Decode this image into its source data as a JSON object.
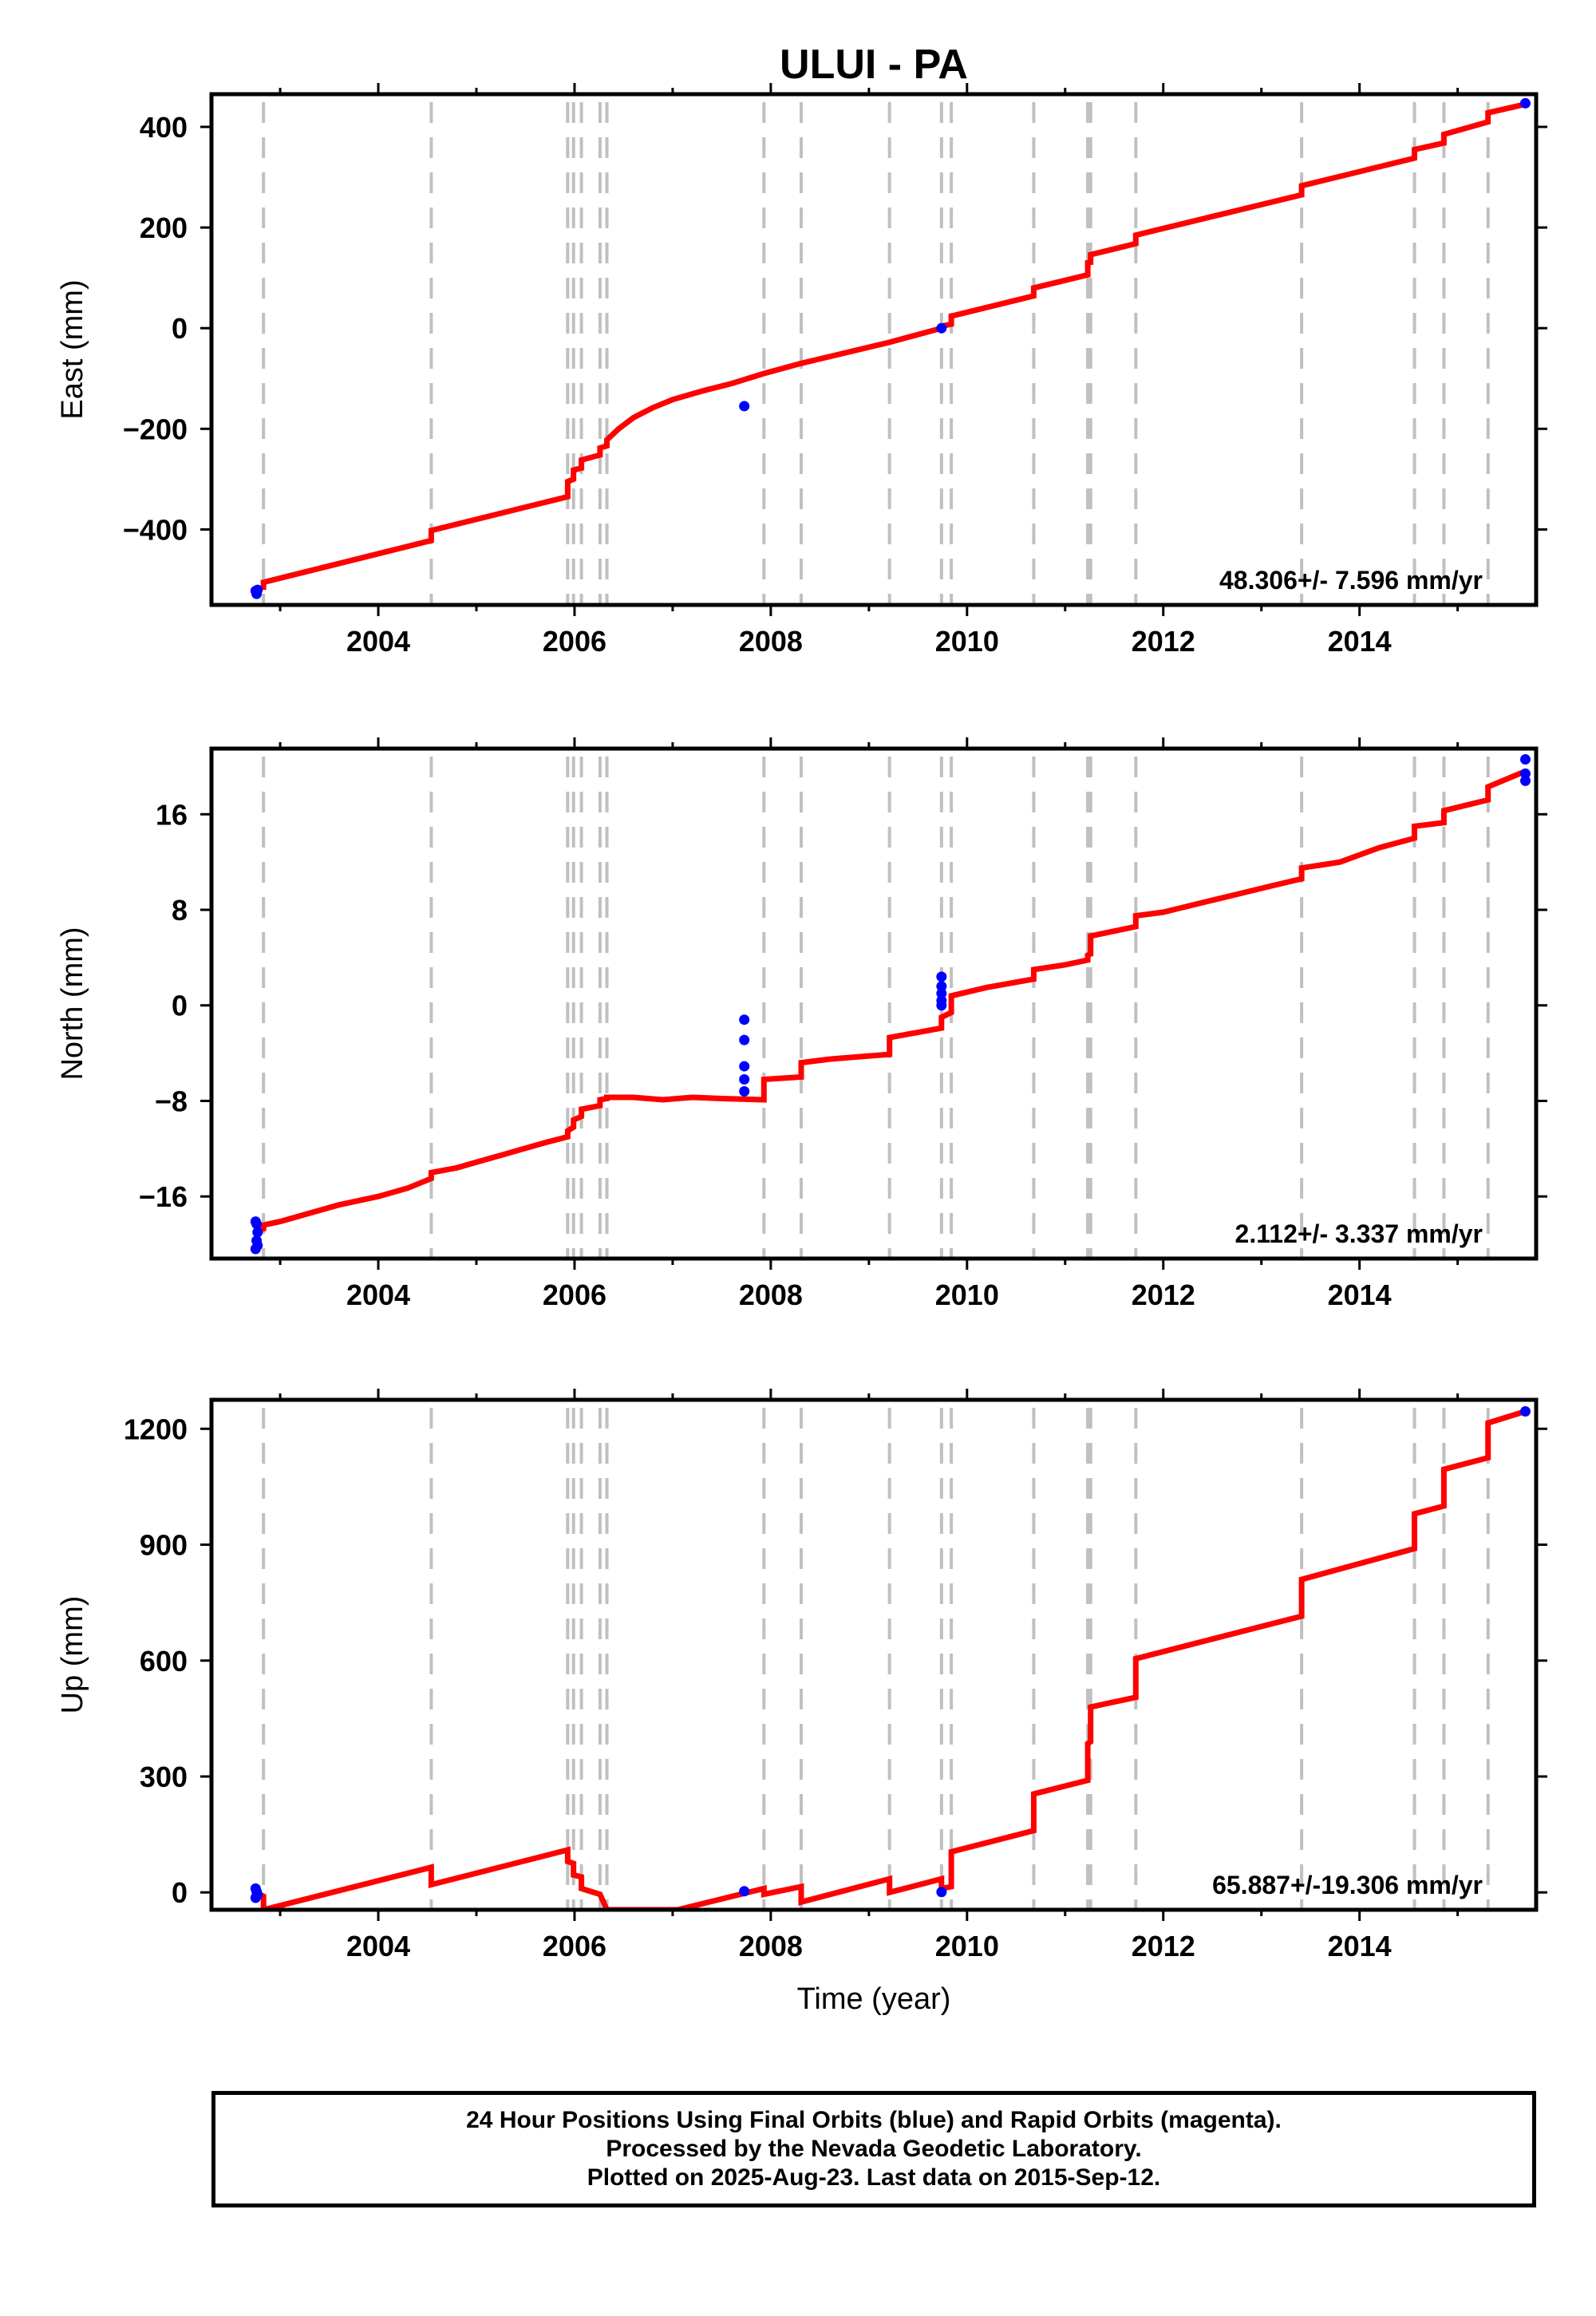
{
  "title": "ULUI - PA",
  "xlabel": "Time (year)",
  "footer": {
    "line1": "24 Hour Positions Using Final Orbits (blue) and Rapid Orbits (magenta).",
    "line2": "Processed by the Nevada Geodetic Laboratory.",
    "line3": "Plotted on 2025-Aug-23. Last data on 2015-Sep-12."
  },
  "colors": {
    "model": "#ff0000",
    "final_orbits": "#0000ff",
    "event_lines": "#c0c0c0",
    "axes": "#000000"
  },
  "chart_data": [
    {
      "type": "scatter",
      "ylabel": "East (mm)",
      "rate_label": "48.306+/- 7.596 mm/yr",
      "xlim": [
        2002.3,
        2015.8
      ],
      "ylim": [
        -550,
        465
      ],
      "xticks": [
        2004,
        2006,
        2008,
        2010,
        2012,
        2014
      ],
      "yticks": [
        -400,
        -200,
        0,
        200,
        400
      ],
      "grid": false,
      "event_lines": [
        2002.83,
        2004.54,
        2005.93,
        2005.99,
        2006.07,
        2006.26,
        2006.33,
        2007.93,
        2008.31,
        2009.21,
        2009.74,
        2009.84,
        2010.68,
        2011.23,
        2011.26,
        2011.72,
        2013.41,
        2014.56,
        2014.86,
        2015.31
      ],
      "series": [
        {
          "kind": "model",
          "x": [
            2002.83,
            2002.83,
            2004.54,
            2004.54,
            2005.93,
            2005.93,
            2005.99,
            2005.99,
            2006.07,
            2006.07,
            2006.26,
            2006.26,
            2006.33,
            2006.33,
            2006.45,
            2006.6,
            2006.8,
            2007.0,
            2007.3,
            2007.6,
            2007.93,
            2008.31,
            2009.21,
            2009.74,
            2009.74,
            2009.84,
            2009.84,
            2010.68,
            2010.68,
            2011.23,
            2011.23,
            2011.26,
            2011.26,
            2011.72,
            2011.72,
            2013.41,
            2013.41,
            2014.56,
            2014.56,
            2014.86,
            2014.86,
            2015.31,
            2015.31,
            2015.69
          ],
          "y": [
            -520,
            -505,
            -422,
            -402,
            -335,
            -305,
            -300,
            -282,
            -278,
            -262,
            -252,
            -238,
            -234,
            -222,
            -200,
            -178,
            -158,
            -142,
            -125,
            -110,
            -90,
            -70,
            -28,
            0,
            4,
            8,
            24,
            64,
            80,
            106,
            130,
            131,
            146,
            168,
            185,
            265,
            283,
            338,
            355,
            368,
            385,
            410,
            428,
            445
          ]
        },
        {
          "kind": "final_orbits",
          "x": [
            2002.75,
            2002.76,
            2002.77,
            2007.73,
            2009.74,
            2015.69
          ],
          "y": [
            -522,
            -528,
            -520,
            -155,
            0,
            447
          ]
        }
      ]
    },
    {
      "type": "scatter",
      "ylabel": "North (mm)",
      "rate_label": "2.112+/- 3.337 mm/yr",
      "xlim": [
        2002.3,
        2015.8
      ],
      "ylim": [
        -21.2,
        21.5
      ],
      "xticks": [
        2004,
        2006,
        2008,
        2010,
        2012,
        2014
      ],
      "yticks": [
        -16,
        -8,
        0,
        8,
        16
      ],
      "grid": false,
      "event_lines": [
        2002.83,
        2004.54,
        2005.93,
        2005.99,
        2006.07,
        2006.26,
        2006.33,
        2007.93,
        2008.31,
        2009.21,
        2009.74,
        2009.84,
        2010.68,
        2011.23,
        2011.26,
        2011.72,
        2013.41,
        2014.56,
        2014.86,
        2015.31
      ],
      "series": [
        {
          "kind": "model",
          "x": [
            2002.75,
            2002.83,
            2002.83,
            2003.0,
            2003.3,
            2003.6,
            2004.0,
            2004.3,
            2004.54,
            2004.54,
            2004.8,
            2005.1,
            2005.4,
            2005.7,
            2005.93,
            2005.93,
            2005.99,
            2005.99,
            2006.07,
            2006.07,
            2006.26,
            2006.26,
            2006.33,
            2006.33,
            2006.6,
            2006.9,
            2007.2,
            2007.5,
            2007.93,
            2007.93,
            2008.31,
            2008.31,
            2008.6,
            2008.9,
            2009.21,
            2009.21,
            2009.74,
            2009.74,
            2009.84,
            2009.84,
            2010.2,
            2010.68,
            2010.68,
            2011.0,
            2011.23,
            2011.23,
            2011.26,
            2011.26,
            2011.72,
            2011.72,
            2012.0,
            2012.4,
            2012.8,
            2013.1,
            2013.41,
            2013.41,
            2013.8,
            2014.2,
            2014.56,
            2014.56,
            2014.86,
            2014.86,
            2015.31,
            2015.31,
            2015.69
          ],
          "y": [
            -18.9,
            -18.7,
            -18.4,
            -18.1,
            -17.4,
            -16.7,
            -16.0,
            -15.3,
            -14.5,
            -14.0,
            -13.6,
            -12.9,
            -12.2,
            -11.5,
            -11.0,
            -10.5,
            -10.2,
            -9.6,
            -9.3,
            -8.7,
            -8.4,
            -7.9,
            -7.8,
            -7.7,
            -7.7,
            -7.9,
            -7.7,
            -7.8,
            -7.9,
            -6.2,
            -6.0,
            -4.8,
            -4.5,
            -4.3,
            -4.1,
            -2.7,
            -1.9,
            -1.0,
            -0.6,
            0.8,
            1.5,
            2.2,
            3.0,
            3.4,
            3.8,
            4.2,
            4.3,
            5.8,
            6.6,
            7.5,
            7.8,
            8.6,
            9.4,
            10.0,
            10.6,
            11.5,
            12.0,
            13.2,
            14.0,
            15.0,
            15.3,
            16.3,
            17.2,
            18.3,
            19.6
          ]
        },
        {
          "kind": "final_orbits",
          "x": [
            2002.75,
            2002.76,
            2002.77,
            2002.75,
            2002.76,
            2002.77,
            2007.73,
            2007.73,
            2007.73,
            2007.73,
            2007.73,
            2009.74,
            2009.74,
            2009.74,
            2009.74,
            2009.74,
            2015.69,
            2015.69,
            2015.69
          ],
          "y": [
            -20.4,
            -19.7,
            -19.0,
            -18.1,
            -18.3,
            -20.1,
            -1.2,
            -2.9,
            -5.1,
            -6.2,
            -7.2,
            2.4,
            1.6,
            1.0,
            0.4,
            0.0,
            20.6,
            19.4,
            18.8
          ]
        }
      ]
    },
    {
      "type": "scatter",
      "ylabel": "Up (mm)",
      "rate_label": "65.887+/-19.306 mm/yr",
      "xlim": [
        2002.3,
        2015.8
      ],
      "ylim": [
        -45,
        1275
      ],
      "xticks": [
        2004,
        2006,
        2008,
        2010,
        2012,
        2014
      ],
      "yticks": [
        0,
        300,
        600,
        900,
        1200
      ],
      "grid": false,
      "event_lines": [
        2002.83,
        2004.54,
        2005.93,
        2005.99,
        2006.07,
        2006.26,
        2006.33,
        2007.93,
        2008.31,
        2009.21,
        2009.74,
        2009.84,
        2010.68,
        2011.23,
        2011.26,
        2011.72,
        2013.41,
        2014.56,
        2014.86,
        2015.31
      ],
      "series": [
        {
          "kind": "model",
          "x": [
            2002.75,
            2002.83,
            2002.83,
            2004.54,
            2004.54,
            2005.93,
            2005.93,
            2005.99,
            2005.99,
            2006.07,
            2006.07,
            2006.26,
            2006.26,
            2006.33,
            2006.33,
            2007.05,
            2007.93,
            2007.93,
            2008.31,
            2008.31,
            2009.21,
            2009.21,
            2009.74,
            2009.74,
            2009.84,
            2009.84,
            2010.68,
            2010.68,
            2011.23,
            2011.23,
            2011.26,
            2011.26,
            2011.72,
            2011.72,
            2013.41,
            2013.41,
            2014.56,
            2014.56,
            2014.86,
            2014.86,
            2015.31,
            2015.31,
            2015.69
          ],
          "y": [
            0,
            -10,
            -45,
            65,
            20,
            110,
            80,
            75,
            45,
            40,
            10,
            -5,
            -5,
            -45,
            -45,
            -45,
            10,
            -5,
            15,
            -25,
            35,
            0,
            35,
            10,
            15,
            105,
            160,
            255,
            290,
            385,
            390,
            480,
            505,
            605,
            715,
            810,
            890,
            980,
            1000,
            1095,
            1125,
            1215,
            1245
          ]
        },
        {
          "kind": "final_orbits",
          "x": [
            2002.75,
            2002.76,
            2002.77,
            2002.75,
            2007.73,
            2009.74,
            2015.69
          ],
          "y": [
            10,
            2,
            -6,
            -14,
            3,
            1,
            1245
          ]
        }
      ]
    }
  ]
}
